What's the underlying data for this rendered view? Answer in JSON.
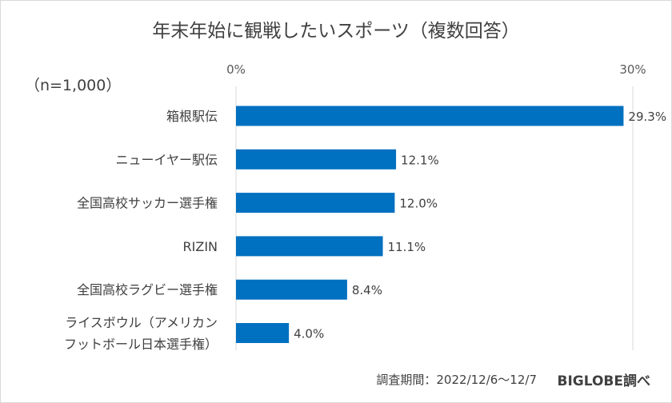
{
  "chart_data": {
    "type": "bar",
    "orientation": "horizontal",
    "title": "年末年始に観戦したいスポーツ（複数回答）",
    "sample_size": "（n=1,000）",
    "categories": [
      [
        "箱根駅伝"
      ],
      [
        "ニューイヤー駅伝"
      ],
      [
        "全国高校サッカー選手権"
      ],
      [
        "RIZIN"
      ],
      [
        "全国高校ラグビー選手権"
      ],
      [
        "ライスボウル（アメリカン",
        "フットボール日本選手権）"
      ]
    ],
    "values": [
      29.3,
      12.1,
      12.0,
      11.1,
      8.4,
      4.0
    ],
    "value_labels": [
      "29.3%",
      "12.1%",
      "12.0%",
      "11.1%",
      "8.4%",
      "4.0%"
    ],
    "x_ticks": [
      0,
      30
    ],
    "x_tick_labels": [
      "0%",
      "30%"
    ],
    "xlim": [
      0,
      30
    ],
    "axis_position": "top",
    "grid": true,
    "bar_color": "#0070c0",
    "gridline_color": "#d9d9d9"
  },
  "footer": {
    "source": "調査期間：2022/12/6〜12/7",
    "brand": "BIGLOBE調べ"
  }
}
